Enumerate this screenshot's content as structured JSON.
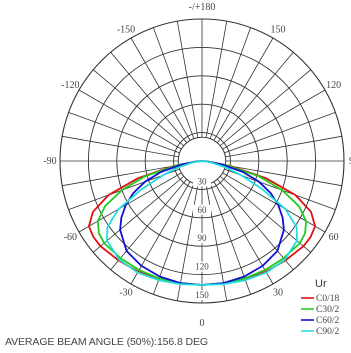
{
  "chart_data": {
    "type": "polar",
    "angle_labels": [
      "-/+180",
      "150",
      "120",
      "90",
      "60",
      "30",
      "0",
      "-30",
      "-60",
      "-90",
      "-120",
      "-150"
    ],
    "radial_ticks": [
      30,
      60,
      90,
      120,
      150
    ],
    "radial_tick_labels": [
      "30",
      "60",
      "90",
      "120",
      "150"
    ],
    "rmax": 150,
    "legend": {
      "title": "Ur",
      "entries": [
        "C0/18",
        "C30/2",
        "C60/2",
        "C90/2"
      ]
    },
    "colors": {
      "grid": "#333333",
      "C0/180": "#e01010",
      "C30/210": "#22cc22",
      "C60/240": "#1010d0",
      "C90/270": "#22dddd"
    },
    "series": [
      {
        "name": "C0/18",
        "angles": [
          0,
          10,
          20,
          30,
          40,
          50,
          55,
          60,
          65,
          70,
          75,
          80,
          85,
          90
        ],
        "values": [
          131,
          131,
          132,
          135,
          137,
          140,
          140,
          138,
          127,
          105,
          70,
          30,
          6,
          0
        ]
      },
      {
        "name": "C30/2",
        "angles": [
          0,
          10,
          20,
          30,
          40,
          50,
          55,
          60,
          65,
          70,
          75,
          80,
          85,
          90
        ],
        "values": [
          131,
          131,
          132,
          133,
          134,
          135,
          133,
          127,
          113,
          90,
          62,
          27,
          6,
          0
        ]
      },
      {
        "name": "C60/2",
        "angles": [
          0,
          10,
          20,
          30,
          40,
          50,
          55,
          60,
          65,
          70,
          75,
          80,
          85,
          90
        ],
        "values": [
          131,
          131,
          130,
          128,
          124,
          113,
          104,
          93,
          80,
          64,
          45,
          22,
          5,
          0
        ]
      },
      {
        "name": "C90/2",
        "angles": [
          0,
          10,
          20,
          30,
          40,
          50,
          55,
          60,
          65,
          70,
          75,
          80,
          85,
          90
        ],
        "values": [
          131,
          132,
          134,
          136,
          136,
          131,
          122,
          102,
          70,
          44,
          25,
          11,
          3,
          0
        ]
      }
    ]
  },
  "beam_angle_text": "AVERAGE BEAM ANGLE (50%):156.8 DEG"
}
